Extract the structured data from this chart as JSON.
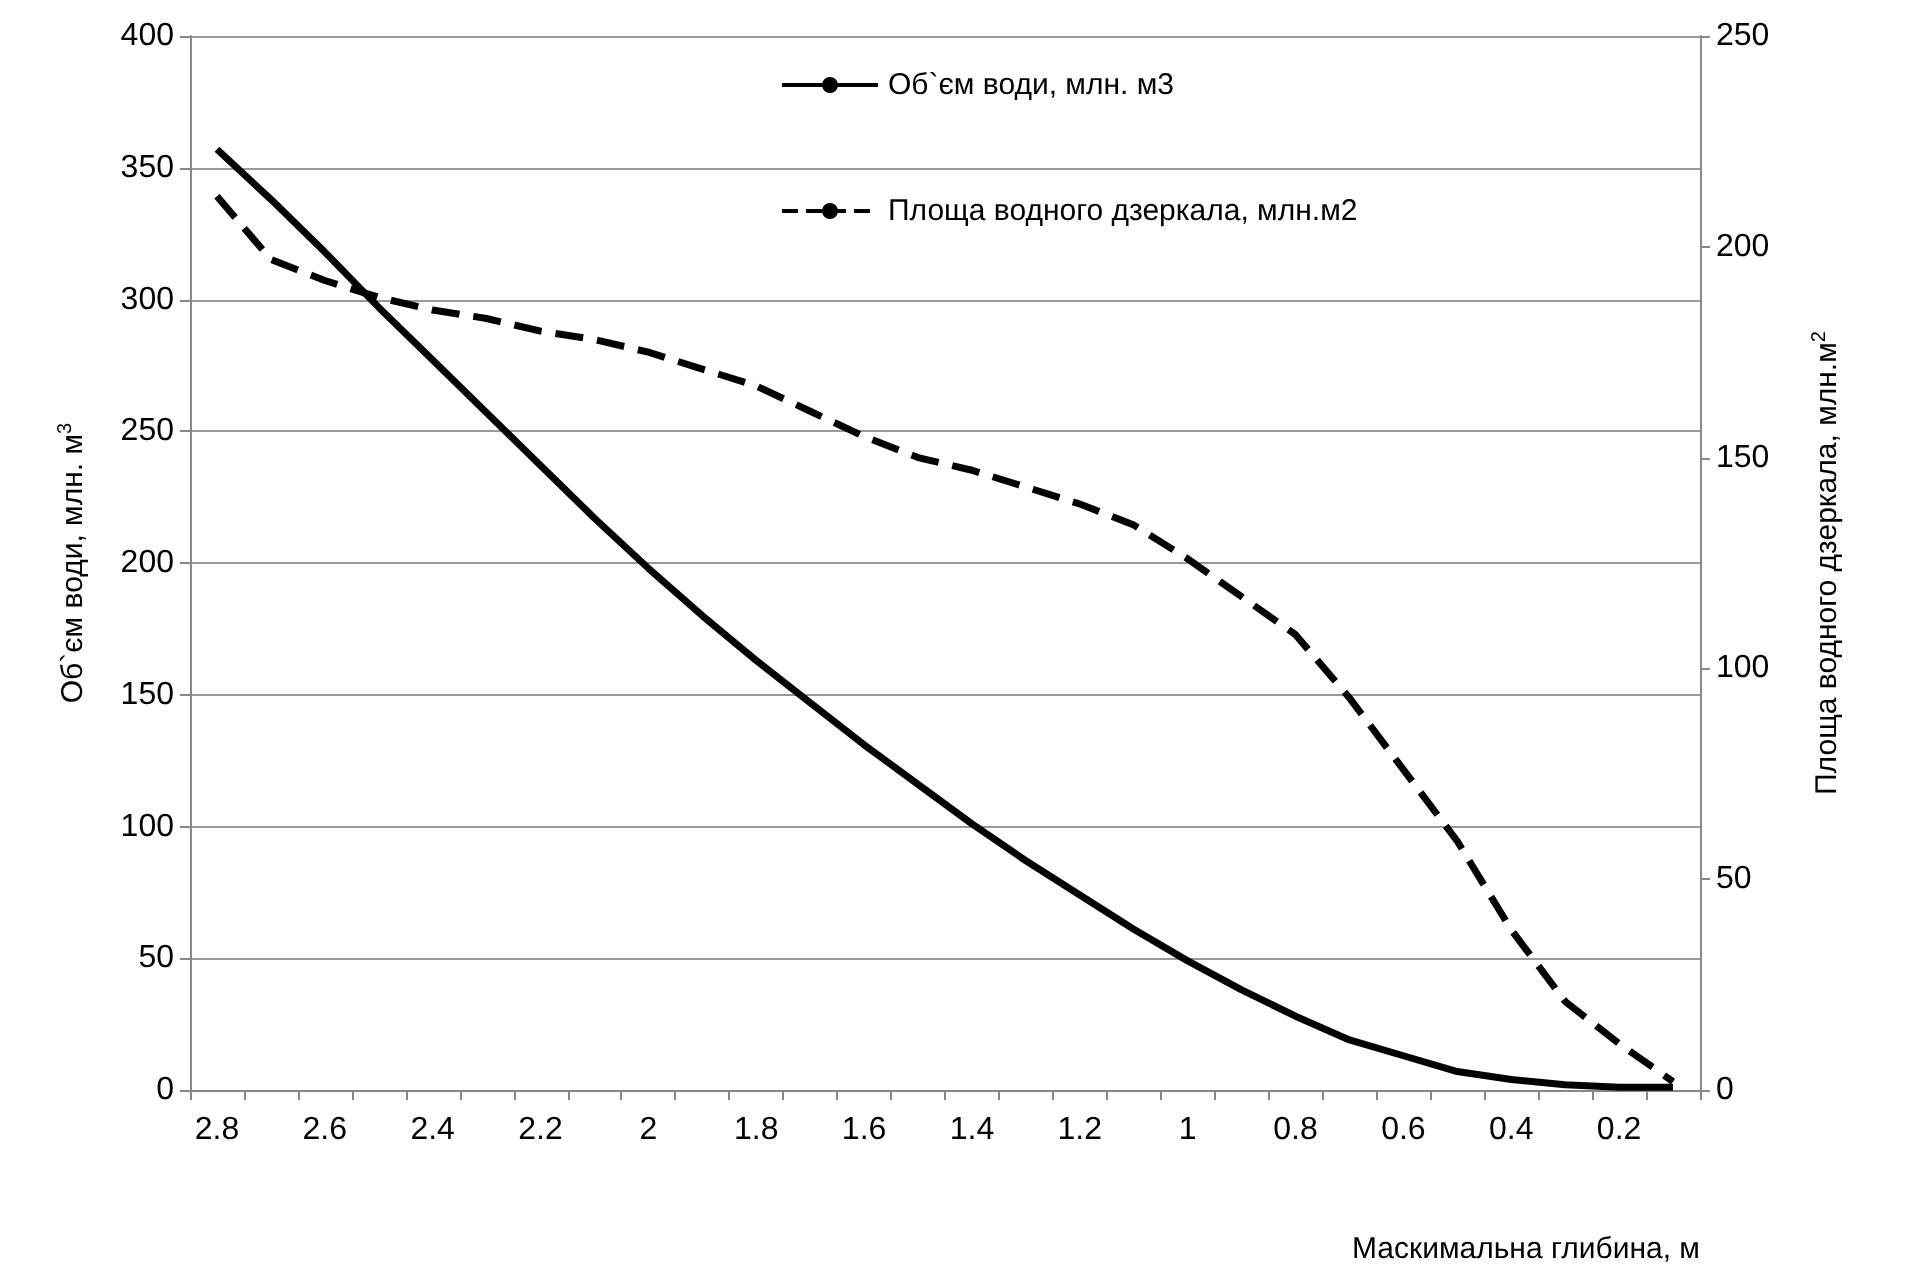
{
  "chart_data": {
    "type": "line",
    "xlabel": "Маскимальна глибина, м",
    "ylabel": "Об`єм води, млн. м$^{3}$",
    "y2label": "Площа водного дзеркала, млн.м$^{2}$",
    "categories": [
      "2.8",
      null,
      "2.6",
      null,
      "2.4",
      null,
      "2.2",
      null,
      "2",
      null,
      "1.8",
      null,
      "1.6",
      null,
      "1.4",
      null,
      "1.2",
      null,
      "1",
      null,
      "0.8",
      null,
      "0.6",
      null,
      "0.4",
      null,
      "0.2",
      null
    ],
    "series": [
      {
        "name": "Об`єм води, млн. м3",
        "color": "#000000",
        "line_style": "solid",
        "values": [
          357,
          338,
          318,
          297,
          277,
          257,
          237,
          217,
          198,
          180,
          163,
          147,
          131,
          116,
          101,
          87,
          74,
          61,
          49,
          38,
          28,
          19,
          13,
          7,
          4,
          2,
          1,
          1
        ]
      },
      {
        "name": "Площа водного дзеркала, млн.м2",
        "color": "#000000",
        "line_style": "dashed",
        "axis": "y2",
        "values": [
          212,
          197,
          192,
          188,
          185,
          183,
          180,
          178,
          175,
          171,
          167,
          161,
          155,
          150,
          147,
          143,
          139,
          134,
          126,
          117,
          108,
          93,
          76,
          59,
          38,
          21,
          11,
          2
        ]
      }
    ],
    "ylim": [
      0,
      400
    ],
    "yticks": [
      0,
      50,
      100,
      150,
      200,
      250,
      300,
      350,
      400
    ],
    "y2lim": [
      0,
      250
    ],
    "y2ticks": [
      0,
      50,
      100,
      150,
      200,
      250
    ],
    "grid": "y",
    "legend": "top",
    "marker": "none"
  }
}
